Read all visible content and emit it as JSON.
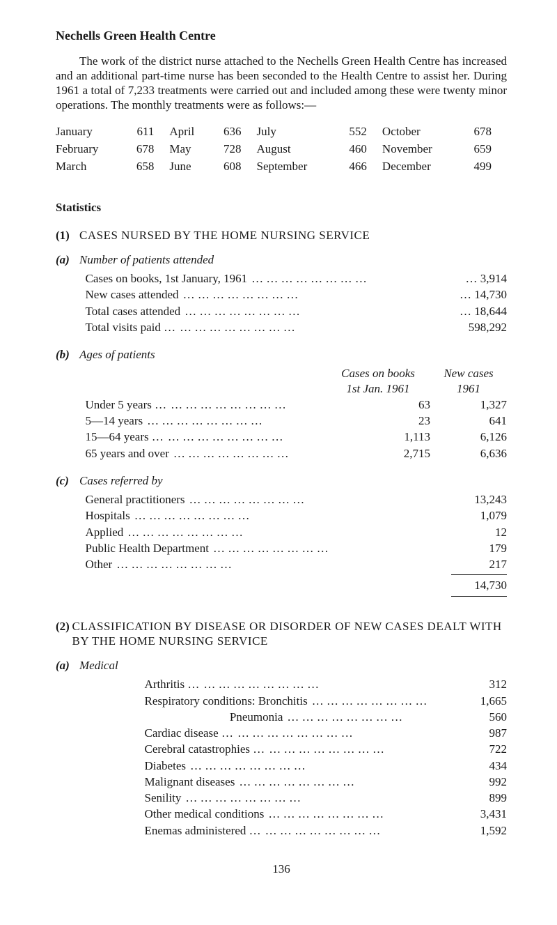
{
  "title": "Nechells Green Health Centre",
  "intro": "The work of the district nurse attached to the Nechells Green Health Centre has increased and an additional part-time nurse has been seconded to the Health Centre to assist her. During 1961 a total of 7,233 treatments were carried out and included among these were twenty minor operations. The monthly treatments were as follows:—",
  "monthly": {
    "rows": [
      {
        "m1": "January",
        "v1": "611",
        "m2": "April",
        "v2": "636",
        "m3": "July",
        "v3": "552",
        "m4": "October",
        "v4": "678"
      },
      {
        "m1": "February",
        "v1": "678",
        "m2": "May",
        "v2": "728",
        "m3": "August",
        "v3": "460",
        "m4": "November",
        "v4": "659"
      },
      {
        "m1": "March",
        "v1": "658",
        "m2": "June",
        "v2": "608",
        "m3": "September",
        "v3": "466",
        "m4": "December",
        "v4": "499"
      }
    ]
  },
  "statistics_label": "Statistics",
  "section1": {
    "no": "(1)",
    "title": "CASES NURSED BY THE HOME NURSING SERVICE",
    "a": {
      "no": "(a)",
      "heading": "Number of patients attended",
      "rows": [
        {
          "label": "Cases on books, 1st January, 1961",
          "value": "… 3,914"
        },
        {
          "label": "New cases attended",
          "value": "… 14,730"
        },
        {
          "label": "Total cases attended",
          "value": "… 18,644"
        },
        {
          "label": "Total visits paid …",
          "value": "598,292"
        }
      ]
    },
    "b": {
      "no": "(b)",
      "heading": "Ages of patients",
      "head1a": "Cases on books",
      "head1b": "1st Jan. 1961",
      "head2a": "New cases",
      "head2b": "1961",
      "rows": [
        {
          "label": "Under 5 years …",
          "v1": "63",
          "v2": "1,327"
        },
        {
          "label": "5—14 years",
          "v1": "23",
          "v2": "641"
        },
        {
          "label": "15—64 years  …",
          "v1": "1,113",
          "v2": "6,126"
        },
        {
          "label": "65 years and over",
          "v1": "2,715",
          "v2": "6,636"
        }
      ]
    },
    "c": {
      "no": "(c)",
      "heading": "Cases referred by",
      "rows": [
        {
          "label": "General practitioners",
          "value": "13,243"
        },
        {
          "label": "Hospitals",
          "value": "1,079"
        },
        {
          "label": "Applied",
          "value": "12"
        },
        {
          "label": "Public Health Department",
          "value": "179"
        },
        {
          "label": "Other",
          "value": "217"
        }
      ],
      "total": "14,730"
    }
  },
  "section2": {
    "no": "(2)",
    "title": "CLASSIFICATION BY DISEASE OR DISORDER OF NEW CASES DEALT WITH BY THE HOME NURSING SERVICE",
    "a": {
      "no": "(a)",
      "heading": "Medical",
      "rows": [
        {
          "label": "Arthritis   …",
          "indent": 1,
          "value": "312"
        },
        {
          "label": "Respiratory conditions: Bronchitis",
          "indent": 1,
          "value": "1,665"
        },
        {
          "label": "Pneumonia",
          "indent": 2,
          "value": "560"
        },
        {
          "label": "Cardiac disease   …",
          "indent": 1,
          "value": "987"
        },
        {
          "label": "Cerebral catastrophies   …",
          "indent": 1,
          "value": "722"
        },
        {
          "label": "Diabetes",
          "indent": 1,
          "value": "434"
        },
        {
          "label": "Malignant diseases",
          "indent": 1,
          "value": "992"
        },
        {
          "label": "Senility",
          "indent": 1,
          "value": "899"
        },
        {
          "label": "Other medical conditions",
          "indent": 1,
          "value": "3,431"
        },
        {
          "label": "Enemas administered   …",
          "indent": 1,
          "value": "1,592"
        }
      ]
    }
  },
  "page_number": "136",
  "dot_leader": "…     …     …     …     …     …     …     …"
}
